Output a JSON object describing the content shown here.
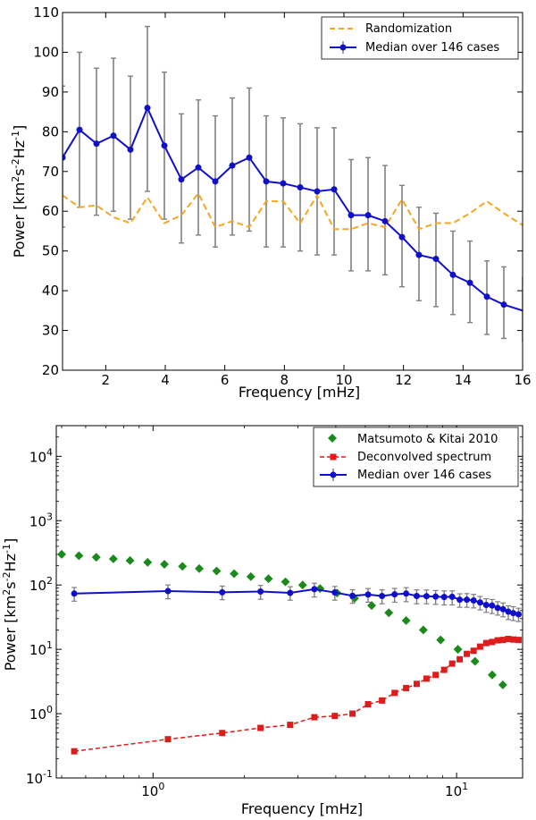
{
  "chart_data": [
    {
      "type": "line",
      "xlabel": "Frequency [mHz]",
      "ylabel": "Power [km²s⁻²Hz⁻¹]",
      "ylabel_parts": [
        "Power [km",
        "2",
        "s",
        "-2",
        "Hz",
        "-1",
        "]"
      ],
      "xlim": [
        0.55,
        16
      ],
      "ylim": [
        20,
        110
      ],
      "xticks": [
        2,
        4,
        6,
        8,
        10,
        12,
        14,
        16
      ],
      "yticks": [
        20,
        30,
        40,
        50,
        60,
        70,
        80,
        90,
        100,
        110
      ],
      "legend_position": "top-right",
      "colors": {
        "median": "#1010c8",
        "randomization": "#f5a623",
        "errorbar": "#808080"
      },
      "series": [
        {
          "name": "Randomization",
          "style": "dashed",
          "x": [
            0.55,
            1.12,
            1.69,
            2.26,
            2.83,
            3.4,
            3.97,
            4.54,
            5.11,
            5.68,
            6.25,
            6.82,
            7.39,
            7.96,
            8.53,
            9.1,
            9.67,
            10.24,
            10.81,
            11.38,
            11.95,
            12.52,
            13.09,
            13.66,
            14.23,
            14.8,
            15.37,
            16.0
          ],
          "y": [
            64,
            61,
            61.5,
            58.5,
            57,
            63.5,
            57,
            59,
            64.5,
            56,
            57.5,
            56,
            62.5,
            62.5,
            57,
            64,
            55.5,
            55.5,
            57,
            56,
            63,
            55.5,
            57,
            57,
            59.5,
            62.5,
            59.5,
            56.5
          ]
        },
        {
          "name": "Median over 146 cases",
          "style": "solid-with-markers",
          "x": [
            0.55,
            1.12,
            1.69,
            2.26,
            2.83,
            3.4,
            3.97,
            4.54,
            5.11,
            5.68,
            6.25,
            6.82,
            7.39,
            7.96,
            8.53,
            9.1,
            9.67,
            10.24,
            10.81,
            11.38,
            11.95,
            12.52,
            13.09,
            13.66,
            14.23,
            14.8,
            15.37,
            16.0
          ],
          "y": [
            73.5,
            80.5,
            77,
            79,
            75.5,
            86,
            76.5,
            68,
            71,
            67.5,
            71.5,
            73.5,
            67.5,
            67,
            66,
            65,
            65.5,
            59,
            59,
            57.5,
            53.5,
            49,
            48,
            44,
            42,
            38.5,
            36.5,
            35
          ],
          "err_low": [
            56,
            61,
            59,
            60,
            58,
            65,
            58,
            52,
            54,
            51,
            54,
            55,
            51,
            51,
            50,
            49,
            49,
            45,
            45,
            44,
            41,
            37.5,
            36,
            34,
            32,
            29,
            28,
            27
          ],
          "err_high": [
            91.5,
            100,
            96,
            98.5,
            94,
            106.5,
            95,
            84.5,
            88,
            84,
            88.5,
            91,
            84,
            83.5,
            82,
            81,
            81,
            73,
            73.5,
            71.5,
            66.5,
            61,
            59.5,
            55,
            52.5,
            47.5,
            46,
            43.5
          ],
          "err_marked": [
            true,
            true,
            true,
            true,
            true,
            true,
            true,
            true,
            true,
            true,
            true,
            true,
            true,
            true,
            true,
            true,
            true,
            true,
            true,
            true,
            true,
            true,
            true,
            true,
            true,
            true,
            true,
            false
          ]
        }
      ]
    },
    {
      "type": "line",
      "scale": "log-log",
      "xlabel": "Frequency [mHz]",
      "ylabel": "Power [km²s⁻²Hz⁻¹]",
      "ylabel_parts": [
        "Power [km",
        "2",
        "s",
        "-2",
        "Hz",
        "-1",
        "]"
      ],
      "xlim": [
        0.48,
        16.5
      ],
      "ylim": [
        0.1,
        30000
      ],
      "xticks": [
        {
          "value": 1,
          "base": "10",
          "exp": "0"
        },
        {
          "value": 10,
          "base": "10",
          "exp": "1"
        }
      ],
      "yticks": [
        {
          "value": 0.1,
          "base": "10",
          "exp": "-1"
        },
        {
          "value": 1,
          "base": "10",
          "exp": "0"
        },
        {
          "value": 10,
          "base": "10",
          "exp": "1"
        },
        {
          "value": 100,
          "base": "10",
          "exp": "2"
        },
        {
          "value": 1000,
          "base": "10",
          "exp": "3"
        },
        {
          "value": 10000,
          "base": "10",
          "exp": "4"
        }
      ],
      "legend_position": "top-right",
      "colors": {
        "matsumoto": "#1a8a1a",
        "deconvolved": "#dd1c1c",
        "median": "#1010c8",
        "errorbar": "#808080"
      },
      "series": [
        {
          "name": "Matsumoto & Kitai 2010",
          "style": "diamond-markers",
          "x": [
            0.5,
            0.57,
            0.65,
            0.74,
            0.84,
            0.96,
            1.09,
            1.25,
            1.42,
            1.62,
            1.85,
            2.1,
            2.4,
            2.73,
            3.11,
            3.55,
            4.04,
            4.61,
            5.25,
            5.98,
            6.82,
            7.77,
            8.86,
            10.1,
            11.5,
            13.1,
            14.2
          ],
          "y": [
            300,
            285,
            270,
            255,
            240,
            225,
            210,
            195,
            180,
            165,
            150,
            135,
            125,
            112,
            100,
            88,
            75,
            62,
            48,
            37,
            28,
            20,
            14,
            10,
            6.5,
            4,
            2.8
          ]
        },
        {
          "name": "Deconvolved spectrum",
          "style": "dashed-with-squares",
          "x": [
            0.55,
            1.12,
            1.69,
            2.26,
            2.83,
            3.4,
            3.97,
            4.54,
            5.11,
            5.68,
            6.25,
            6.82,
            7.39,
            7.96,
            8.53,
            9.1,
            9.67,
            10.24,
            10.81,
            11.38,
            11.95,
            12.52,
            13.09,
            13.66,
            14.23,
            14.8,
            15.37,
            16.0
          ],
          "y": [
            0.26,
            0.4,
            0.5,
            0.6,
            0.67,
            0.88,
            0.92,
            1.0,
            1.4,
            1.6,
            2.1,
            2.5,
            2.9,
            3.5,
            4.0,
            4.8,
            6.0,
            7.0,
            8.5,
            9.5,
            11.0,
            12.5,
            13.0,
            13.8,
            14.0,
            14.5,
            14.2,
            14.0
          ]
        },
        {
          "name": "Median over 146 cases",
          "style": "solid-with-markers",
          "x": [
            0.55,
            1.12,
            1.69,
            2.26,
            2.83,
            3.4,
            3.97,
            4.54,
            5.11,
            5.68,
            6.25,
            6.82,
            7.39,
            7.96,
            8.53,
            9.1,
            9.67,
            10.24,
            10.81,
            11.38,
            11.95,
            12.52,
            13.09,
            13.66,
            14.23,
            14.8,
            15.37,
            16.0
          ],
          "y": [
            73.5,
            80.5,
            77,
            79,
            75.5,
            86,
            76.5,
            68,
            71,
            67.5,
            71.5,
            73.5,
            67.5,
            67,
            66,
            65,
            65.5,
            59,
            59,
            57.5,
            53.5,
            49,
            48,
            44,
            42,
            38.5,
            36.5,
            35
          ],
          "err_low": [
            56,
            61,
            59,
            60,
            58,
            65,
            58,
            52,
            54,
            51,
            54,
            55,
            51,
            51,
            50,
            49,
            49,
            45,
            45,
            44,
            41,
            37.5,
            36,
            34,
            32,
            29,
            28,
            27
          ],
          "err_high": [
            91.5,
            100,
            96,
            98.5,
            94,
            106.5,
            95,
            84.5,
            88,
            84,
            88.5,
            91,
            84,
            83.5,
            82,
            81,
            81,
            73,
            73.5,
            71.5,
            66.5,
            61,
            59.5,
            55,
            52.5,
            47.5,
            46,
            43.5
          ]
        }
      ]
    }
  ]
}
